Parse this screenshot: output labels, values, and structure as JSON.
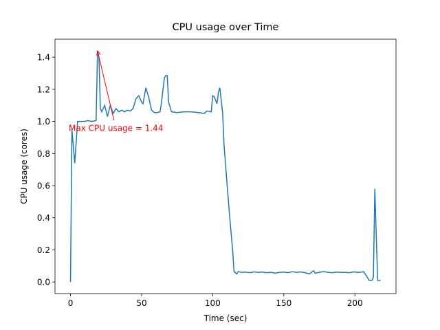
{
  "chart_data": {
    "type": "line",
    "title": "CPU usage over Time",
    "xlabel": "Time (sec)",
    "ylabel": "CPU usage (cores)",
    "x": [
      0,
      1,
      3,
      5,
      8,
      10,
      12,
      15,
      18,
      19,
      20,
      21,
      22,
      24,
      26,
      28,
      30,
      32,
      34,
      36,
      38,
      40,
      42,
      44,
      46,
      48,
      50,
      51,
      53,
      55,
      57,
      59,
      61,
      63,
      64,
      66,
      67,
      68,
      69,
      71,
      75,
      80,
      85,
      90,
      94,
      96,
      99,
      100,
      101,
      103,
      104,
      105,
      107,
      108,
      110,
      112,
      114,
      115,
      117,
      118,
      120,
      123,
      126,
      129,
      132,
      135,
      138,
      141,
      144,
      147,
      150,
      153,
      156,
      159,
      162,
      165,
      168,
      171,
      172,
      175,
      178,
      181,
      184,
      187,
      190,
      193,
      196,
      199,
      202,
      205,
      206,
      208,
      210,
      212,
      213,
      214,
      215,
      216,
      218
    ],
    "series": [
      {
        "name": "CPU usage",
        "color": "#1f77b4",
        "values": [
          0,
          0.95,
          0.74,
          1.0,
          1.0,
          1.0,
          1.005,
          1.0,
          1.005,
          1.44,
          1.4,
          1.08,
          1.06,
          1.1,
          1.03,
          1.1,
          1.05,
          1.08,
          1.06,
          1.07,
          1.06,
          1.07,
          1.065,
          1.08,
          1.14,
          1.16,
          1.12,
          1.11,
          1.21,
          1.15,
          1.07,
          1.055,
          1.055,
          1.06,
          1.12,
          1.27,
          1.285,
          1.285,
          1.12,
          1.06,
          1.055,
          1.06,
          1.06,
          1.055,
          1.05,
          1.065,
          1.06,
          1.16,
          1.155,
          1.11,
          1.18,
          1.21,
          1.05,
          0.85,
          0.62,
          0.4,
          0.2,
          0.065,
          0.05,
          0.065,
          0.06,
          0.062,
          0.058,
          0.063,
          0.06,
          0.062,
          0.058,
          0.06,
          0.055,
          0.06,
          0.062,
          0.058,
          0.064,
          0.06,
          0.063,
          0.058,
          0.05,
          0.07,
          0.055,
          0.06,
          0.065,
          0.06,
          0.058,
          0.062,
          0.06,
          0.06,
          0.058,
          0.063,
          0.06,
          0.062,
          0.065,
          0.04,
          0.01,
          0.01,
          0.03,
          0.58,
          0.3,
          0.01,
          0.01
        ]
      }
    ],
    "xlim": [
      -10.9,
      228.9
    ],
    "ylim": [
      -0.072,
      1.512
    ],
    "xticks": [
      0,
      50,
      100,
      150,
      200
    ],
    "yticks": [
      {
        "value": 0,
        "label": "0.0"
      },
      0.2,
      0.4,
      0.6,
      0.8,
      {
        "value": 1,
        "label": "1.0"
      },
      1.2,
      1.4
    ],
    "annotation": {
      "text": "Max CPU usage = 1.44",
      "x": 19,
      "y": 1.44,
      "text_x": 32,
      "text_y": 0.96,
      "color": "#ff0000"
    }
  }
}
